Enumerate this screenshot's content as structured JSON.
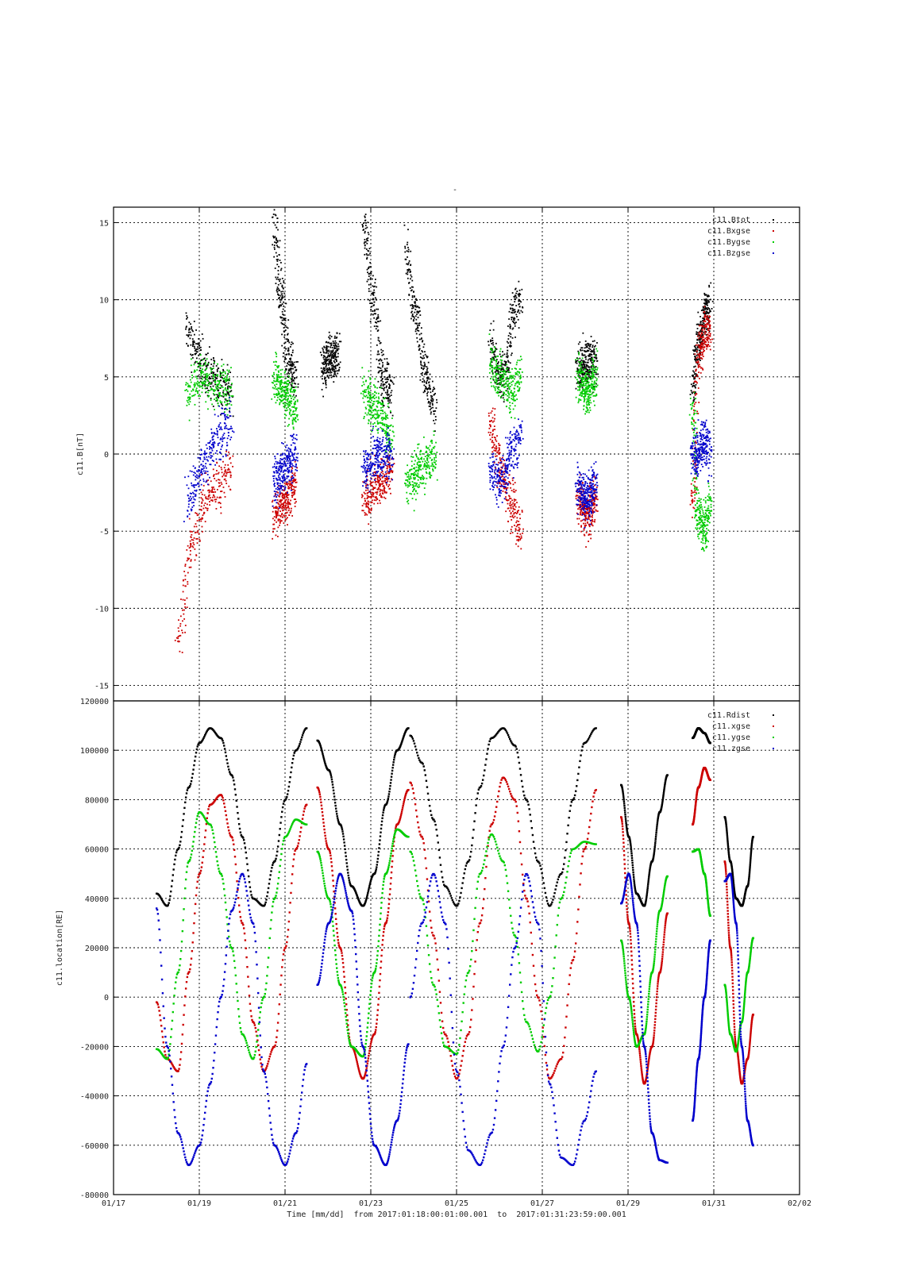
{
  "figure_title": "-",
  "chart_data": [
    {
      "type": "scatter",
      "ylabel": "c11.B[nT]",
      "ylim": [
        -16,
        16
      ],
      "yticks": [
        -15,
        -10,
        -5,
        0,
        5,
        10,
        15
      ],
      "grid": true,
      "legend_placement": "top-right",
      "x_range": [
        "2017-01-17",
        "2017-02-02"
      ],
      "note": "dense scatter of magnetic field components; segment centers with approximate mean values",
      "series": [
        {
          "name": "c11.Btot",
          "color": "#000000",
          "segments": [
            {
              "from": "01/18 17:00",
              "to": "01/19 18:00",
              "y": [
                8,
                6.5,
                5,
                4.5,
                4
              ]
            },
            {
              "from": "01/20 18:00",
              "to": "01/21 06:00",
              "y": [
                15,
                10,
                6,
                5
              ]
            },
            {
              "from": "01/21 21:00",
              "to": "01/22 06:00",
              "y": [
                5.5,
                6,
                6.5
              ]
            },
            {
              "from": "01/22 20:00",
              "to": "01/23 12:00",
              "y": [
                15,
                10,
                5,
                4
              ]
            },
            {
              "from": "01/23 20:00",
              "to": "01/24 12:00",
              "y": [
                13,
                9,
                5,
                3
              ]
            },
            {
              "from": "01/25 19:00",
              "to": "01/26 12:00",
              "y": [
                7,
                5.5,
                5,
                9,
                10
              ]
            },
            {
              "from": "01/27 20:00",
              "to": "01/28 06:00",
              "y": [
                5.5,
                6,
                6
              ]
            },
            {
              "from": "01/30 12:00",
              "to": "01/30 22:00",
              "y": [
                4,
                7,
                9,
                9.5
              ]
            }
          ]
        },
        {
          "name": "c11.Bxgse",
          "color": "#cc0000",
          "segments": [
            {
              "from": "01/18 12:00",
              "to": "01/19 18:00",
              "y": [
                -12,
                -6,
                -3,
                -2,
                -1
              ]
            },
            {
              "from": "01/20 18:00",
              "to": "01/21 06:00",
              "y": [
                -4,
                -3,
                -2
              ]
            },
            {
              "from": "01/22 20:00",
              "to": "01/23 12:00",
              "y": [
                -3,
                -2,
                -1
              ]
            },
            {
              "from": "01/25 19:00",
              "to": "01/26 12:00",
              "y": [
                2,
                -1,
                -3,
                -5
              ]
            },
            {
              "from": "01/27 20:00",
              "to": "01/28 06:00",
              "y": [
                -3,
                -4,
                -3
              ]
            },
            {
              "from": "01/30 12:00",
              "to": "01/30 22:00",
              "y": [
                -3,
                6,
                8,
                8
              ]
            }
          ]
        },
        {
          "name": "c11.Bygse",
          "color": "#00cc00",
          "segments": [
            {
              "from": "01/18 17:00",
              "to": "01/19 18:00",
              "y": [
                4,
                5,
                4.5,
                4
              ]
            },
            {
              "from": "01/20 18:00",
              "to": "01/21 06:00",
              "y": [
                5,
                4,
                3
              ]
            },
            {
              "from": "01/22 20:00",
              "to": "01/23 12:00",
              "y": [
                4,
                3,
                1
              ]
            },
            {
              "from": "01/23 20:00",
              "to": "01/24 12:00",
              "y": [
                -2,
                -1,
                0
              ]
            },
            {
              "from": "01/25 19:00",
              "to": "01/26 12:00",
              "y": [
                6,
                5,
                4,
                5
              ]
            },
            {
              "from": "01/27 20:00",
              "to": "01/28 06:00",
              "y": [
                5,
                4,
                5
              ]
            },
            {
              "from": "01/30 12:00",
              "to": "01/30 22:00",
              "y": [
                3,
                -4,
                -5,
                -3
              ]
            }
          ]
        },
        {
          "name": "c11.Bzgse",
          "color": "#0000cc",
          "segments": [
            {
              "from": "01/18 17:00",
              "to": "01/19 18:00",
              "y": [
                -3,
                -1,
                1,
                2
              ]
            },
            {
              "from": "01/20 18:00",
              "to": "01/21 06:00",
              "y": [
                -2,
                -1,
                0
              ]
            },
            {
              "from": "01/22 20:00",
              "to": "01/23 12:00",
              "y": [
                -1,
                0,
                0
              ]
            },
            {
              "from": "01/25 19:00",
              "to": "01/26 12:00",
              "y": [
                -1,
                -2,
                0,
                1
              ]
            },
            {
              "from": "01/27 20:00",
              "to": "01/28 06:00",
              "y": [
                -2,
                -3,
                -2
              ]
            },
            {
              "from": "01/30 12:00",
              "to": "01/30 22:00",
              "y": [
                0,
                0,
                1,
                0
              ]
            }
          ]
        }
      ]
    },
    {
      "type": "line",
      "ylabel": "c11.location[RE]",
      "ylim": [
        -80000,
        120000
      ],
      "yticks": [
        -80000,
        -60000,
        -40000,
        -20000,
        0,
        20000,
        40000,
        60000,
        80000,
        100000,
        120000
      ],
      "grid": true,
      "legend_placement": "top-right",
      "xlabel": "Time [mm/dd]  from 2017:01:18:00:01:00.001  to  2017:01:31:23:59:00.001",
      "x_range": [
        "2017-01-17",
        "2017-02-02"
      ],
      "xticks": [
        "01/17",
        "01/19",
        "01/21",
        "01/23",
        "01/25",
        "01/27",
        "01/29",
        "01/31",
        "02/02"
      ],
      "series": [
        {
          "name": "c11.Rdist",
          "color": "#000000",
          "segments": [
            {
              "from": "01/18 00:00",
              "to": "01/21 12:00",
              "y": [
                42000,
                37000,
                60000,
                85000,
                103000,
                109000,
                105000,
                90000,
                65000,
                40000,
                37000,
                55000,
                80000,
                100000,
                109000
              ]
            },
            {
              "from": "01/21 18:00",
              "to": "01/23 21:00",
              "y": [
                104000,
                92000,
                70000,
                45000,
                37000,
                50000,
                78000,
                100000,
                109000
              ]
            },
            {
              "from": "01/23 22:00",
              "to": "01/28 06:00",
              "y": [
                106000,
                95000,
                72000,
                45000,
                37000,
                55000,
                85000,
                105000,
                109000,
                102000,
                80000,
                55000,
                37000,
                50000,
                80000,
                103000,
                109000
              ]
            },
            {
              "from": "01/28 20:00",
              "to": "01/29 22:00",
              "y": [
                86000,
                65000,
                42000,
                37000,
                55000,
                75000,
                90000
              ]
            },
            {
              "from": "01/30 12:00",
              "to": "01/30 22:00",
              "y": [
                105000,
                109000,
                107000,
                103000
              ]
            },
            {
              "from": "01/31 06:00",
              "to": "01/31 22:00",
              "y": [
                73000,
                55000,
                40000,
                37000,
                45000,
                65000
              ]
            }
          ]
        },
        {
          "name": "c11.xgse",
          "color": "#cc0000",
          "segments": [
            {
              "from": "01/18 00:00",
              "to": "01/21 12:00",
              "y": [
                -2000,
                -25000,
                -30000,
                10000,
                50000,
                78000,
                82000,
                65000,
                30000,
                -10000,
                -30000,
                -20000,
                20000,
                60000,
                78000
              ]
            },
            {
              "from": "01/21 18:00",
              "to": "01/23 21:00",
              "y": [
                85000,
                60000,
                20000,
                -20000,
                -33000,
                -15000,
                30000,
                70000,
                84000
              ]
            },
            {
              "from": "01/23 22:00",
              "to": "01/28 06:00",
              "y": [
                87000,
                65000,
                25000,
                -15000,
                -33000,
                -15000,
                30000,
                70000,
                89000,
                80000,
                40000,
                0,
                -33000,
                -25000,
                15000,
                60000,
                84000
              ]
            },
            {
              "from": "01/28 20:00",
              "to": "01/29 22:00",
              "y": [
                73000,
                30000,
                -15000,
                -35000,
                -20000,
                10000,
                34000
              ]
            },
            {
              "from": "01/30 12:00",
              "to": "01/30 22:00",
              "y": [
                70000,
                85000,
                93000,
                88000
              ]
            },
            {
              "from": "01/31 06:00",
              "to": "01/31 22:00",
              "y": [
                55000,
                20000,
                -20000,
                -35000,
                -25000,
                -7000
              ]
            }
          ]
        },
        {
          "name": "c11.ygse",
          "color": "#00cc00",
          "segments": [
            {
              "from": "01/18 00:00",
              "to": "01/21 12:00",
              "y": [
                -21000,
                -25000,
                10000,
                55000,
                75000,
                70000,
                50000,
                20000,
                -15000,
                -25000,
                0,
                40000,
                65000,
                72000,
                70000
              ]
            },
            {
              "from": "01/21 18:00",
              "to": "01/23 21:00",
              "y": [
                59000,
                40000,
                5000,
                -20000,
                -24000,
                10000,
                50000,
                68000,
                65000
              ]
            },
            {
              "from": "01/23 22:00",
              "to": "01/28 06:00",
              "y": [
                59000,
                40000,
                5000,
                -20000,
                -23000,
                10000,
                50000,
                66000,
                55000,
                25000,
                -10000,
                -22000,
                0,
                40000,
                60000,
                63000,
                62000
              ]
            },
            {
              "from": "01/28 20:00",
              "to": "01/29 22:00",
              "y": [
                23000,
                0,
                -20000,
                -15000,
                10000,
                35000,
                49000
              ]
            },
            {
              "from": "01/30 12:00",
              "to": "01/30 22:00",
              "y": [
                59000,
                60000,
                50000,
                33000
              ]
            },
            {
              "from": "01/31 06:00",
              "to": "01/31 22:00",
              "y": [
                5000,
                -15000,
                -22000,
                -10000,
                10000,
                24000
              ]
            }
          ]
        },
        {
          "name": "c11.zgse",
          "color": "#0000cc",
          "segments": [
            {
              "from": "01/18 00:00",
              "to": "01/21 12:00",
              "y": [
                36000,
                -20000,
                -55000,
                -68000,
                -60000,
                -35000,
                0,
                35000,
                50000,
                30000,
                -30000,
                -60000,
                -68000,
                -55000,
                -27000
              ]
            },
            {
              "from": "01/21 18:00",
              "to": "01/23 21:00",
              "y": [
                5000,
                30000,
                50000,
                35000,
                -20000,
                -60000,
                -68000,
                -50000,
                -19000
              ]
            },
            {
              "from": "01/23 22:00",
              "to": "01/28 06:00",
              "y": [
                0,
                30000,
                50000,
                30000,
                -30000,
                -62000,
                -68000,
                -55000,
                -20000,
                20000,
                50000,
                30000,
                -35000,
                -65000,
                -68000,
                -50000,
                -30000
              ]
            },
            {
              "from": "01/28 20:00",
              "to": "01/29 22:00",
              "y": [
                38000,
                50000,
                30000,
                -20000,
                -55000,
                -66000,
                -67000
              ]
            },
            {
              "from": "01/30 12:00",
              "to": "01/30 22:00",
              "y": [
                -50000,
                -25000,
                0,
                23000
              ]
            },
            {
              "from": "01/31 06:00",
              "to": "01/31 22:00",
              "y": [
                47000,
                50000,
                30000,
                -20000,
                -50000,
                -60000
              ]
            }
          ]
        }
      ]
    }
  ]
}
